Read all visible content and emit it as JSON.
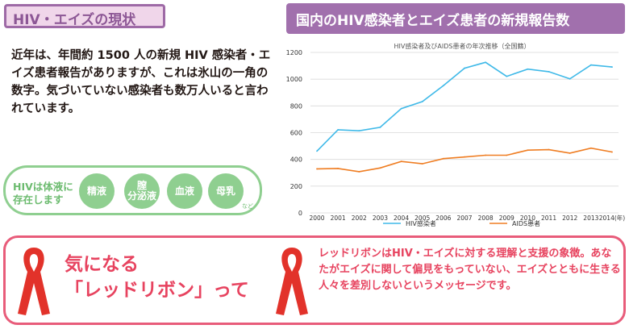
{
  "left_section": {
    "title": "HIV・エイズの現状",
    "intro": "近年は、年間約 1500 人の新規 HIV 感染者・エイズ患者報告がありますが、これは氷山の一角の数字。気づいていない感染者も数万人いると言われています。",
    "fluids_label": "HIVは体液に存在します",
    "fluids": [
      "精液",
      "膣\n分泌液",
      "血液",
      "母乳"
    ],
    "fluids_note": "など"
  },
  "right_section": {
    "title": "国内のHIV感染者とエイズ患者の新規報告数"
  },
  "chart_data": {
    "type": "line",
    "title": "HIV感染者及びAIDS患者の年次推移（全国籍）",
    "x": [
      "2000",
      "2001",
      "2002",
      "2003",
      "2004",
      "2005",
      "2006",
      "2007",
      "2008",
      "2009",
      "2010",
      "2011",
      "2012",
      "2013",
      "2014(年)"
    ],
    "ylim": [
      0,
      1200
    ],
    "yticks": [
      "0",
      "200",
      "400",
      "600",
      "800",
      "1000",
      "1200"
    ],
    "grid": true,
    "legend_position": "bottom",
    "series": [
      {
        "name": "HIV感染者",
        "color": "#3fb9e8",
        "values": [
          462,
          621,
          614,
          640,
          780,
          832,
          952,
          1082,
          1126,
          1021,
          1075,
          1056,
          1002,
          1106,
          1091
        ]
      },
      {
        "name": "AIDS患者",
        "color": "#ef7d22",
        "values": [
          329,
          332,
          308,
          336,
          385,
          367,
          406,
          418,
          431,
          431,
          469,
          473,
          447,
          484,
          455
        ]
      }
    ]
  },
  "ribbon_section": {
    "headline_1": "気になる",
    "headline_2": "「レッドリボン」って",
    "body": "レッドリボンはHIV・エイズに対する理解と支援の象徴。あなたがエイズに関して偏見をもっていない、エイズとともに生きる人々を差別しないというメッセージです。",
    "ribbon_color": "#e2322a"
  }
}
